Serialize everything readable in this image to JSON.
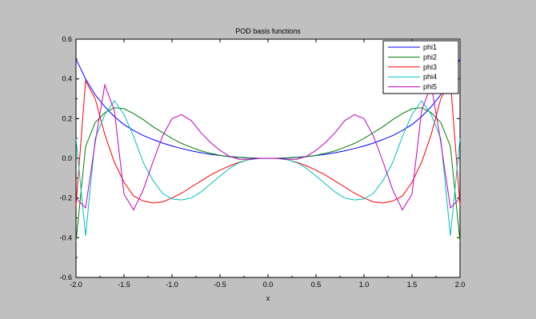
{
  "window": {
    "background": "#c0c0c0"
  },
  "chart_data": {
    "type": "line",
    "title": "POD basis functions",
    "xlabel": "x",
    "ylabel": "",
    "xlim": [
      -2.0,
      2.0
    ],
    "ylim": [
      -0.6,
      0.6
    ],
    "xticks": [
      "-2.0",
      "-1.5",
      "-1.0",
      "-0.5",
      "0.0",
      "0.5",
      "1.0",
      "1.5",
      "2.0"
    ],
    "yticks": [
      "0.6",
      "0.4",
      "0.2",
      "0.0",
      "-0.2",
      "-0.4",
      "-0.6"
    ],
    "grid": false,
    "legend_position": "top-right",
    "x": [
      -2.0,
      -1.9,
      -1.8,
      -1.7,
      -1.6,
      -1.5,
      -1.4,
      -1.3,
      -1.2,
      -1.1,
      -1.0,
      -0.9,
      -0.8,
      -0.7,
      -0.6,
      -0.5,
      -0.4,
      -0.3,
      -0.2,
      -0.1,
      0.0,
      0.1,
      0.2,
      0.3,
      0.4,
      0.5,
      0.6,
      0.7,
      0.8,
      0.9,
      1.0,
      1.1,
      1.2,
      1.3,
      1.4,
      1.5,
      1.6,
      1.7,
      1.8,
      1.9,
      2.0
    ],
    "series": [
      {
        "name": "phi1",
        "color": "#0000ff",
        "values": [
          0.5,
          0.4,
          0.32,
          0.26,
          0.21,
          0.17,
          0.14,
          0.115,
          0.095,
          0.077,
          0.062,
          0.049,
          0.038,
          0.028,
          0.02,
          0.014,
          0.009,
          0.005,
          0.002,
          0.0005,
          0.0,
          0.0005,
          0.002,
          0.005,
          0.009,
          0.014,
          0.02,
          0.028,
          0.038,
          0.049,
          0.062,
          0.077,
          0.095,
          0.115,
          0.14,
          0.17,
          0.21,
          0.26,
          0.32,
          0.4,
          0.5
        ]
      },
      {
        "name": "phi2",
        "color": "#007f00",
        "values": [
          -0.42,
          0.06,
          0.18,
          0.23,
          0.255,
          0.25,
          0.225,
          0.195,
          0.16,
          0.13,
          0.1,
          0.075,
          0.055,
          0.038,
          0.025,
          0.015,
          0.008,
          0.004,
          0.001,
          0.0,
          0.0,
          0.0,
          0.001,
          0.004,
          0.008,
          0.015,
          0.025,
          0.038,
          0.055,
          0.075,
          0.1,
          0.13,
          0.16,
          0.195,
          0.225,
          0.25,
          0.255,
          0.23,
          0.18,
          0.06,
          -0.42
        ]
      },
      {
        "name": "phi3",
        "color": "#ff0000",
        "values": [
          -0.24,
          0.39,
          0.3,
          0.12,
          -0.02,
          -0.12,
          -0.19,
          -0.215,
          -0.225,
          -0.22,
          -0.2,
          -0.175,
          -0.145,
          -0.115,
          -0.085,
          -0.06,
          -0.038,
          -0.02,
          -0.007,
          -0.001,
          0.0,
          -0.001,
          -0.007,
          -0.02,
          -0.038,
          -0.06,
          -0.085,
          -0.115,
          -0.145,
          -0.175,
          -0.2,
          -0.22,
          -0.225,
          -0.215,
          -0.19,
          -0.12,
          -0.02,
          0.12,
          0.3,
          0.39,
          -0.24
        ]
      },
      {
        "name": "phi4",
        "color": "#00bfbf",
        "values": [
          0.1,
          -0.39,
          0.1,
          0.22,
          0.29,
          0.22,
          0.11,
          -0.02,
          -0.11,
          -0.175,
          -0.205,
          -0.21,
          -0.2,
          -0.17,
          -0.13,
          -0.09,
          -0.05,
          -0.022,
          -0.007,
          -0.001,
          0.0,
          -0.001,
          -0.007,
          -0.022,
          -0.05,
          -0.09,
          -0.13,
          -0.17,
          -0.2,
          -0.21,
          -0.205,
          -0.175,
          -0.11,
          -0.02,
          0.11,
          0.22,
          0.29,
          0.22,
          0.1,
          -0.39,
          0.1
        ]
      },
      {
        "name": "phi5",
        "color": "#bf00bf",
        "values": [
          -0.2,
          -0.25,
          0.08,
          0.37,
          0.24,
          -0.18,
          -0.26,
          -0.16,
          -0.02,
          0.11,
          0.2,
          0.22,
          0.19,
          0.13,
          0.08,
          0.04,
          0.01,
          -0.005,
          -0.005,
          0.0,
          0.0,
          0.0,
          -0.005,
          -0.005,
          0.01,
          0.04,
          0.08,
          0.13,
          0.19,
          0.22,
          0.2,
          0.11,
          -0.02,
          -0.16,
          -0.26,
          -0.18,
          0.24,
          0.37,
          0.08,
          -0.25,
          -0.2
        ]
      }
    ]
  }
}
